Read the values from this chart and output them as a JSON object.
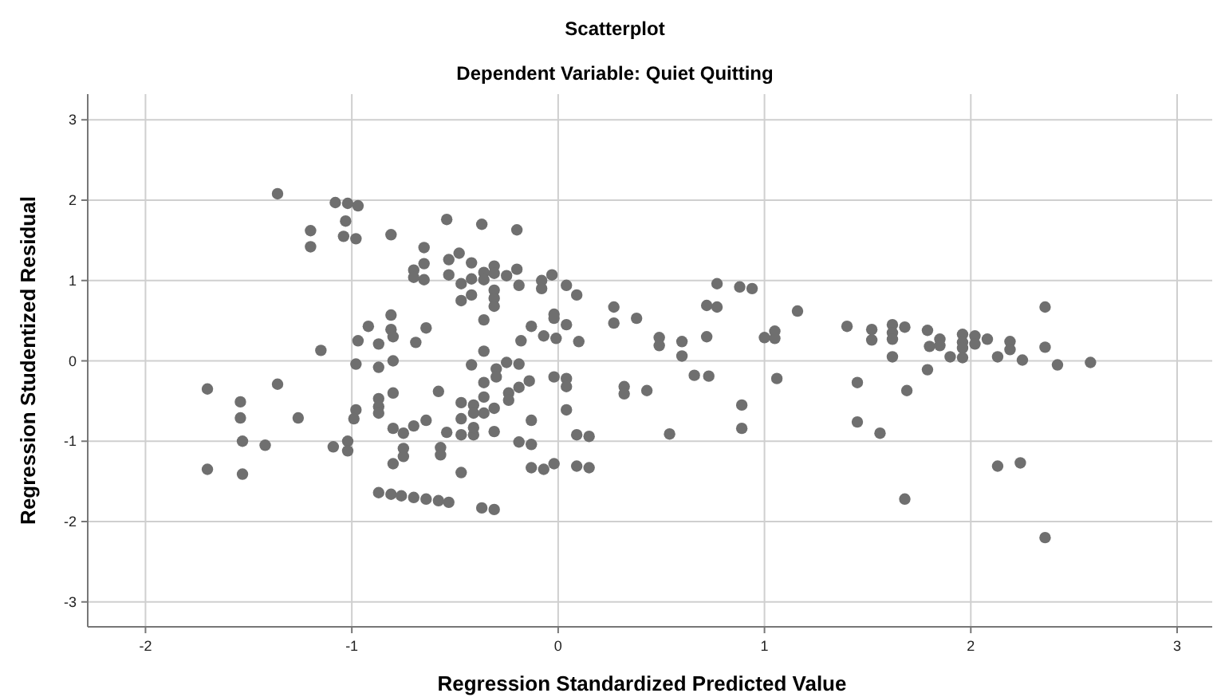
{
  "chart_data": {
    "type": "scatter",
    "title": "Scatterplot",
    "subtitle": "Dependent Variable: Quiet Quitting",
    "xlabel": "Regression Standardized Predicted Value",
    "ylabel": "Regression Studentized Residual",
    "xlim": [
      -2.28,
      3.17
    ],
    "ylim": [
      -3.31,
      3.32
    ],
    "xticks": [
      -2,
      -1,
      0,
      1,
      2,
      3
    ],
    "yticks": [
      -3,
      -2,
      -1,
      0,
      1,
      2,
      3
    ],
    "grid": true,
    "marker": "circle",
    "series": [
      {
        "color": "#6f6f6f",
        "x": [
          -1.36,
          -1.08,
          -1.02,
          -0.97,
          -1.03,
          -1.2,
          -1.2,
          -1.04,
          -0.98,
          -0.92,
          -0.97,
          -0.87,
          -1.15,
          -0.98,
          -0.87,
          -1.7,
          -1.36,
          -1.54,
          -1.54,
          -1.26,
          -0.98,
          -0.99,
          -0.87,
          -0.87,
          -0.87,
          -1.53,
          -1.42,
          -1.09,
          -1.02,
          -1.02,
          -1.7,
          -1.53,
          -0.87,
          -0.81,
          -0.54,
          -0.37,
          -0.2,
          -0.65,
          -0.53,
          -0.48,
          -0.65,
          -0.7,
          -0.7,
          -0.65,
          -0.53,
          -0.42,
          -0.47,
          -0.42,
          -0.36,
          -0.36,
          -0.31,
          -0.31,
          -0.25,
          -0.2,
          -0.19,
          -0.47,
          -0.42,
          -0.31,
          -0.31,
          -0.31,
          -0.08,
          -0.08,
          -0.03,
          0.04,
          0.09,
          -0.36,
          -0.81,
          -0.81,
          -0.8,
          -0.64,
          -0.69,
          -0.13,
          -0.07,
          -0.02,
          -0.02,
          0.04,
          -0.01,
          0.1,
          -0.18,
          -0.36,
          -0.8,
          -0.42,
          -0.25,
          -0.19,
          -0.3,
          -0.3,
          -0.36,
          -0.14,
          -0.02,
          0.04,
          0.04,
          -0.8,
          -0.58,
          -0.47,
          -0.41,
          -0.36,
          -0.24,
          -0.24,
          -0.19,
          -0.41,
          -0.36,
          -0.31,
          -0.47,
          0.04,
          -0.13,
          -0.64,
          -0.7,
          -0.8,
          -0.75,
          -0.54,
          -0.47,
          -0.41,
          -0.41,
          -0.31,
          0.09,
          0.15,
          -0.19,
          -0.13,
          -0.75,
          -0.75,
          -0.57,
          -0.57,
          -0.8,
          -0.47,
          -0.13,
          -0.07,
          -0.02,
          0.09,
          0.15,
          -0.81,
          -0.76,
          -0.7,
          -0.64,
          -0.58,
          -0.53,
          -0.37,
          -0.31,
          0.27,
          0.27,
          0.38,
          0.49,
          0.49,
          0.32,
          0.32,
          0.43,
          0.54,
          0.77,
          0.88,
          0.94,
          0.72,
          0.77,
          1.16,
          0.6,
          0.72,
          0.6,
          1.0,
          1.05,
          1.05,
          0.66,
          0.73,
          1.06,
          0.89,
          0.89,
          1.4,
          1.52,
          1.52,
          1.62,
          1.62,
          1.62,
          1.68,
          1.62,
          1.79,
          1.8,
          1.79,
          1.45,
          1.69,
          1.45,
          1.56,
          1.68,
          1.85,
          1.85,
          1.9,
          1.96,
          1.96,
          1.96,
          1.96,
          2.02,
          2.02,
          2.08,
          2.13,
          2.19,
          2.19,
          2.25,
          2.36,
          2.36,
          2.42,
          2.58,
          2.13,
          2.24,
          2.36
        ],
        "values": [
          2.08,
          1.97,
          1.96,
          1.93,
          1.74,
          1.62,
          1.42,
          1.55,
          1.52,
          0.43,
          0.25,
          0.21,
          0.13,
          -0.04,
          -0.08,
          -0.35,
          -0.29,
          -0.51,
          -0.71,
          -0.71,
          -0.61,
          -0.72,
          -0.47,
          -0.57,
          -0.65,
          -1.0,
          -1.05,
          -1.07,
          -1.0,
          -1.12,
          -1.35,
          -1.41,
          -1.64,
          1.57,
          1.76,
          1.7,
          1.63,
          1.41,
          1.26,
          1.34,
          1.21,
          1.13,
          1.04,
          1.01,
          1.07,
          1.22,
          0.96,
          1.02,
          1.1,
          1.01,
          1.18,
          1.09,
          1.06,
          1.14,
          0.94,
          0.75,
          0.82,
          0.88,
          0.78,
          0.68,
          1.0,
          0.9,
          1.07,
          0.94,
          0.82,
          0.51,
          0.57,
          0.39,
          0.3,
          0.41,
          0.23,
          0.43,
          0.31,
          0.58,
          0.53,
          0.45,
          0.28,
          0.24,
          0.25,
          0.12,
          0.0,
          -0.05,
          -0.02,
          -0.04,
          -0.1,
          -0.2,
          -0.27,
          -0.25,
          -0.2,
          -0.22,
          -0.32,
          -0.4,
          -0.38,
          -0.52,
          -0.55,
          -0.45,
          -0.4,
          -0.49,
          -0.33,
          -0.65,
          -0.65,
          -0.59,
          -0.72,
          -0.61,
          -0.74,
          -0.74,
          -0.81,
          -0.84,
          -0.9,
          -0.89,
          -0.92,
          -0.92,
          -0.83,
          -0.88,
          -0.92,
          -0.94,
          -1.01,
          -1.04,
          -1.09,
          -1.19,
          -1.08,
          -1.17,
          -1.28,
          -1.39,
          -1.33,
          -1.35,
          -1.28,
          -1.31,
          -1.33,
          -1.66,
          -1.68,
          -1.7,
          -1.72,
          -1.74,
          -1.76,
          -1.83,
          -1.85,
          0.67,
          0.47,
          0.53,
          0.29,
          0.19,
          -0.32,
          -0.41,
          -0.37,
          -0.91,
          0.96,
          0.92,
          0.9,
          0.69,
          0.67,
          0.62,
          0.24,
          0.3,
          0.06,
          0.29,
          0.37,
          0.28,
          -0.18,
          -0.19,
          -0.22,
          -0.55,
          -0.84,
          0.43,
          0.39,
          0.26,
          0.45,
          0.35,
          0.27,
          0.42,
          0.05,
          0.38,
          0.18,
          -0.11,
          -0.27,
          -0.37,
          -0.76,
          -0.9,
          -1.72,
          0.27,
          0.19,
          0.05,
          0.33,
          0.23,
          0.16,
          0.04,
          0.31,
          0.21,
          0.27,
          0.05,
          0.24,
          0.14,
          0.01,
          0.67,
          0.17,
          -0.05,
          -0.02,
          -1.31,
          -1.27,
          -2.2
        ]
      }
    ]
  }
}
